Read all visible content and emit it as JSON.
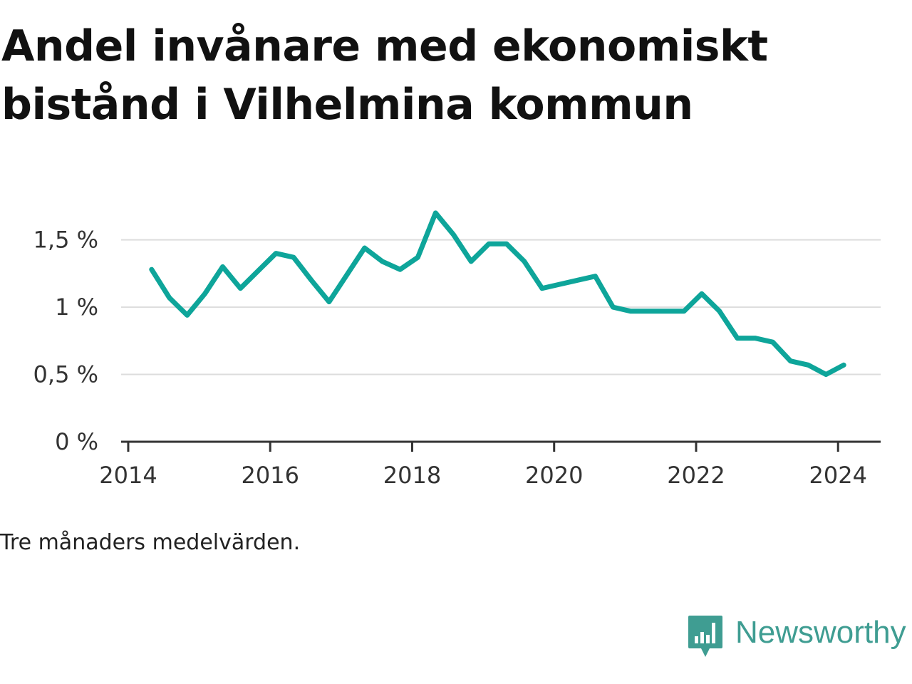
{
  "title": "Andel invånare med ekonomiskt bistånd i Vilhelmina kommun",
  "footnote": "Tre månaders medelvärden.",
  "brand": {
    "name": "Newsworthy",
    "icon": "newsworthy-logo-icon",
    "color": "#3f9d92"
  },
  "chart_data": {
    "type": "line",
    "title": "Andel invånare med ekonomiskt bistånd i Vilhelmina kommun",
    "xlabel": "",
    "ylabel": "",
    "xlim": [
      2013.9,
      2024.6
    ],
    "ylim": [
      0,
      1.8
    ],
    "grid": true,
    "line_color": "#0ea59a",
    "x_ticks": [
      {
        "value": 2014,
        "label": "2014"
      },
      {
        "value": 2016,
        "label": "2016"
      },
      {
        "value": 2018,
        "label": "2018"
      },
      {
        "value": 2020,
        "label": "2020"
      },
      {
        "value": 2022,
        "label": "2022"
      },
      {
        "value": 2024,
        "label": "2024"
      }
    ],
    "y_ticks": [
      {
        "value": 0,
        "label": "0 %"
      },
      {
        "value": 0.5,
        "label": "0,5 %"
      },
      {
        "value": 1,
        "label": "1 %"
      },
      {
        "value": 1.5,
        "label": "1,5 %"
      }
    ],
    "series": [
      {
        "x": [
          2014.33,
          2014.58,
          2014.83,
          2015.08,
          2015.33,
          2015.58,
          2015.83,
          2016.08,
          2016.33,
          2016.58,
          2016.83,
          2017.08,
          2017.33,
          2017.58,
          2017.83,
          2018.08,
          2018.33,
          2018.58,
          2018.83,
          2019.08,
          2019.33,
          2019.58,
          2019.83,
          2020.08,
          2020.33,
          2020.58,
          2020.83,
          2021.08,
          2021.33,
          2021.58,
          2021.83,
          2022.08,
          2022.33,
          2022.58,
          2022.83,
          2023.08,
          2023.33,
          2023.58,
          2023.83,
          2024.08
        ],
        "values": [
          1.28,
          1.07,
          0.94,
          1.1,
          1.3,
          1.14,
          1.27,
          1.4,
          1.37,
          1.2,
          1.04,
          1.24,
          1.44,
          1.34,
          1.28,
          1.37,
          1.7,
          1.54,
          1.34,
          1.47,
          1.47,
          1.34,
          1.14,
          1.17,
          1.2,
          1.23,
          1.0,
          0.97,
          0.97,
          0.97,
          0.97,
          1.1,
          0.97,
          0.77,
          0.77,
          0.74,
          0.6,
          0.57,
          0.5,
          0.57
        ]
      }
    ]
  }
}
